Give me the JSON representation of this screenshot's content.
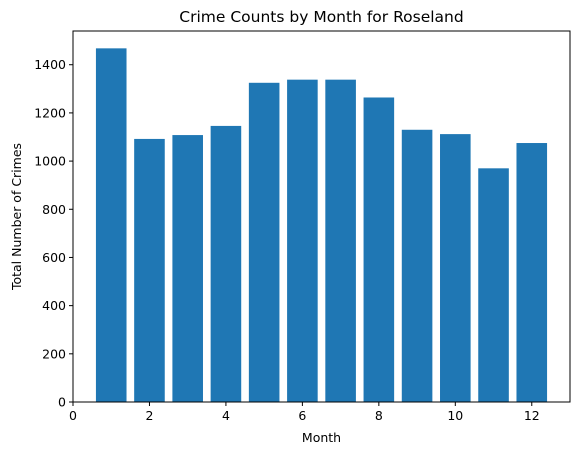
{
  "chart_data": {
    "type": "bar",
    "title": "Crime Counts by Month for Roseland",
    "xlabel": "Month",
    "ylabel": "Total Number of Crimes",
    "categories": [
      1,
      2,
      3,
      4,
      5,
      6,
      7,
      8,
      9,
      10,
      11,
      12
    ],
    "values": [
      1468,
      1092,
      1108,
      1146,
      1325,
      1338,
      1338,
      1264,
      1130,
      1112,
      970,
      1075
    ],
    "bar_width": 0.8,
    "xlim": [
      0,
      13
    ],
    "ylim": [
      0,
      1540
    ],
    "xticks": [
      0,
      2,
      4,
      6,
      8,
      10,
      12
    ],
    "yticks": [
      0,
      200,
      400,
      600,
      800,
      1000,
      1200,
      1400
    ],
    "bar_color": "#1f77b4",
    "grid": false
  }
}
